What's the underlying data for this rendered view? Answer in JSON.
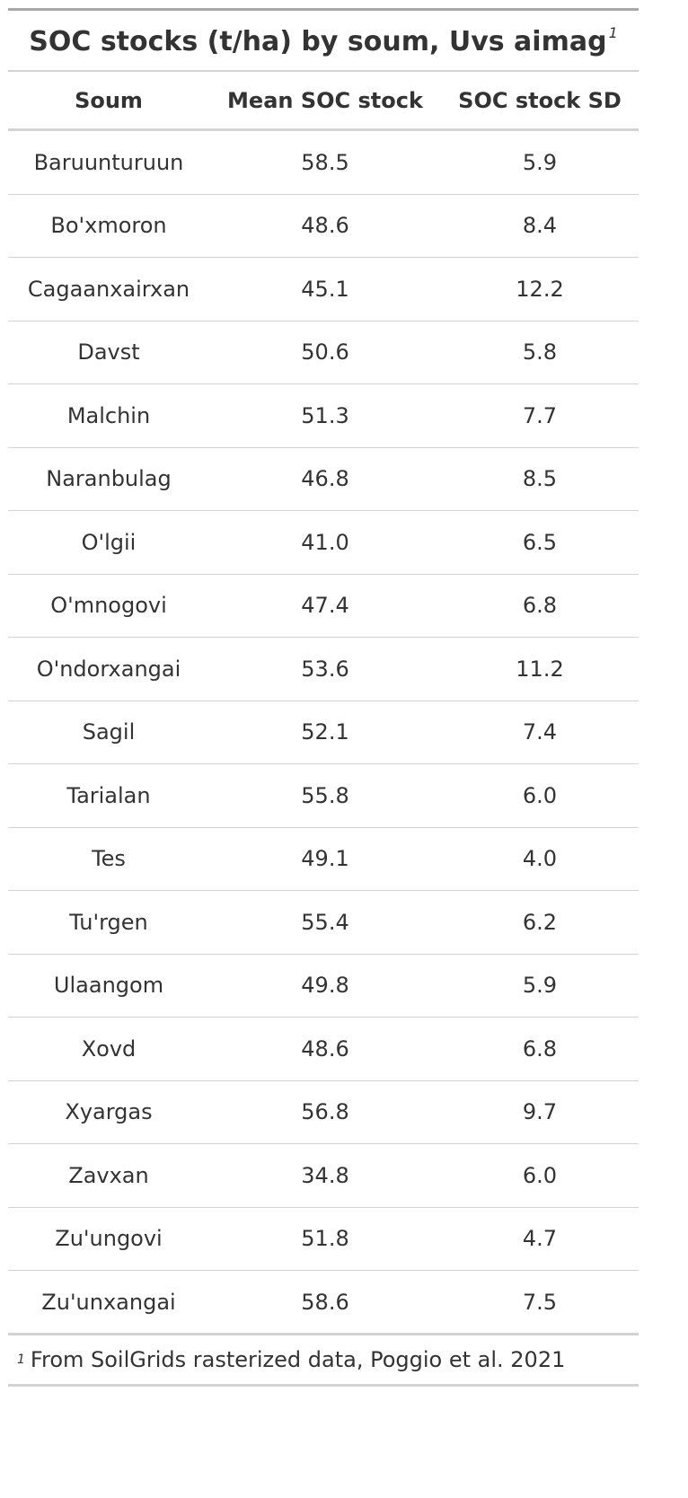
{
  "table": {
    "title": "SOC stocks (t/ha) by soum, Uvs aimag",
    "title_footnote_mark": "1",
    "columns": [
      "Soum",
      "Mean SOC stock",
      "SOC stock SD"
    ],
    "rows": [
      [
        "Baruunturuun",
        "58.5",
        "5.9"
      ],
      [
        "Bo'xmoron",
        "48.6",
        "8.4"
      ],
      [
        "Cagaanxairxan",
        "45.1",
        "12.2"
      ],
      [
        "Davst",
        "50.6",
        "5.8"
      ],
      [
        "Malchin",
        "51.3",
        "7.7"
      ],
      [
        "Naranbulag",
        "46.8",
        "8.5"
      ],
      [
        "O'lgii",
        "41.0",
        "6.5"
      ],
      [
        "O'mnogovi",
        "47.4",
        "6.8"
      ],
      [
        "O'ndorxangai",
        "53.6",
        "11.2"
      ],
      [
        "Sagil",
        "52.1",
        "7.4"
      ],
      [
        "Tarialan",
        "55.8",
        "6.0"
      ],
      [
        "Tes",
        "49.1",
        "4.0"
      ],
      [
        "Tu'rgen",
        "55.4",
        "6.2"
      ],
      [
        "Ulaangom",
        "49.8",
        "5.9"
      ],
      [
        "Xovd",
        "48.6",
        "6.8"
      ],
      [
        "Xyargas",
        "56.8",
        "9.7"
      ],
      [
        "Zavxan",
        "34.8",
        "6.0"
      ],
      [
        "Zu'ungovi",
        "51.8",
        "4.7"
      ],
      [
        "Zu'unxangai",
        "58.6",
        "7.5"
      ]
    ],
    "footnote": {
      "mark": "1",
      "text": "From SoilGrids rasterized data, Poggio et al. 2021"
    }
  }
}
